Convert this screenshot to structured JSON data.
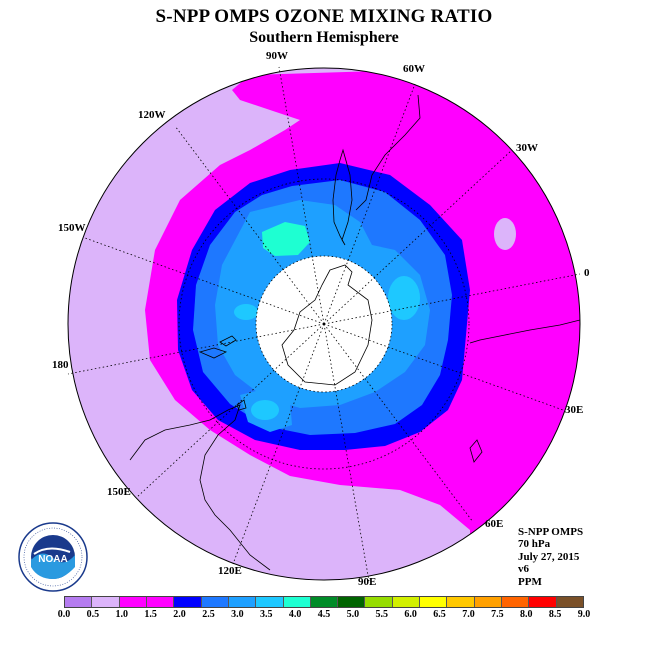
{
  "title": "S-NPP OMPS OZONE MIXING RATIO",
  "subtitle": "Southern Hemisphere",
  "logo_text": "NOAA",
  "logo_ring_text": "NATIONAL OCEANIC AND ATMOSPHERIC ADMINISTRATION · U.S. DEPARTMENT OF COMMERCE",
  "info": {
    "instrument": "S-NPP OMPS",
    "level": "70 hPa",
    "date": "July 27, 2015",
    "version": "v6",
    "units": "PPM"
  },
  "longitude_labels": {
    "lon_90w": "90W",
    "lon_60w": "60W",
    "lon_30w": "30W",
    "lon_0": "0",
    "lon_30e": "30E",
    "lon_60e": "60E",
    "lon_90e": "90E",
    "lon_120e": "120E",
    "lon_150e": "150E",
    "lon_180": "180",
    "lon_150w": "150W",
    "lon_120w": "120W"
  },
  "colorbar": {
    "colors": [
      "#b57cf0",
      "#dcb4fa",
      "#ff00ff",
      "#ff00ff",
      "#0000ff",
      "#1e78ff",
      "#1ea0ff",
      "#1ec8ff",
      "#1effd2",
      "#008c28",
      "#006400",
      "#96dc00",
      "#d2f000",
      "#ffff00",
      "#ffc800",
      "#ffa000",
      "#ff6400",
      "#ff0000",
      "#7a5028"
    ],
    "ticks": [
      "0.0",
      "0.5",
      "1.0",
      "1.5",
      "2.0",
      "2.5",
      "3.0",
      "3.5",
      "4.0",
      "4.5",
      "5.0",
      "5.5",
      "6.0",
      "6.5",
      "7.0",
      "7.5",
      "8.0",
      "8.5",
      "9.0"
    ]
  },
  "map_colors": {
    "outer_low": "#dcb4fa",
    "magenta": "#ff00ff",
    "dark_blue": "#0000ff",
    "mid_blue": "#1e78ff",
    "light_blue": "#1ea0ff",
    "cyan": "#1ec8ff",
    "aqua": "#1effd2",
    "polar_night": "#ffffff"
  }
}
